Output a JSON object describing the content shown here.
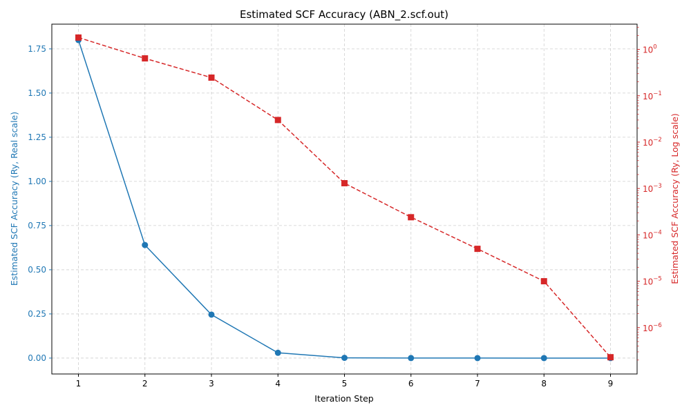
{
  "chart_data": {
    "type": "line",
    "title": "Estimated SCF Accuracy (ABN_2.scf.out)",
    "xlabel": "Iteration Step",
    "ylabel_left": "Estimated SCF Accuracy (Ry, Real scale)",
    "ylabel_right": "Estimated SCF Accuracy (Ry, Log scale)",
    "x": [
      1,
      2,
      3,
      4,
      5,
      6,
      7,
      8,
      9
    ],
    "xlim": [
      0.6,
      9.4
    ],
    "ylim_left": [
      -0.09,
      1.89
    ],
    "ylim_right": [
      1e-07,
      3.5
    ],
    "left_scale": "linear",
    "right_scale": "log",
    "grid": true,
    "x_ticks": [
      "1",
      "2",
      "3",
      "4",
      "5",
      "6",
      "7",
      "8",
      "9"
    ],
    "y_left_ticks": [
      {
        "value": 0.0,
        "label": "0.00"
      },
      {
        "value": 0.25,
        "label": "0.25"
      },
      {
        "value": 0.5,
        "label": "0.50"
      },
      {
        "value": 0.75,
        "label": "0.75"
      },
      {
        "value": 1.0,
        "label": "1.00"
      },
      {
        "value": 1.25,
        "label": "1.25"
      },
      {
        "value": 1.5,
        "label": "1.50"
      },
      {
        "value": 1.75,
        "label": "1.75"
      }
    ],
    "y_right_ticks": [
      {
        "value": 1e-06,
        "base": "10",
        "exp": "−6"
      },
      {
        "value": 1e-05,
        "base": "10",
        "exp": "−5"
      },
      {
        "value": 0.0001,
        "base": "10",
        "exp": "−4"
      },
      {
        "value": 0.001,
        "base": "10",
        "exp": "−3"
      },
      {
        "value": 0.01,
        "base": "10",
        "exp": "−2"
      },
      {
        "value": 0.1,
        "base": "10",
        "exp": "−1"
      },
      {
        "value": 1,
        "base": "10",
        "exp": "0"
      }
    ],
    "series": [
      {
        "axis": "left",
        "color": "#1f77b4",
        "line_style": "solid",
        "marker": "circle",
        "values": [
          1.8,
          0.64,
          0.246,
          0.03,
          0.0013,
          0.00024,
          5e-05,
          1e-05,
          2.3e-07
        ]
      },
      {
        "axis": "right",
        "color": "#d62728",
        "line_style": "dashed",
        "marker": "square",
        "values": [
          1.8,
          0.64,
          0.246,
          0.03,
          0.0013,
          0.00024,
          5e-05,
          1e-05,
          2.3e-07
        ]
      }
    ]
  }
}
